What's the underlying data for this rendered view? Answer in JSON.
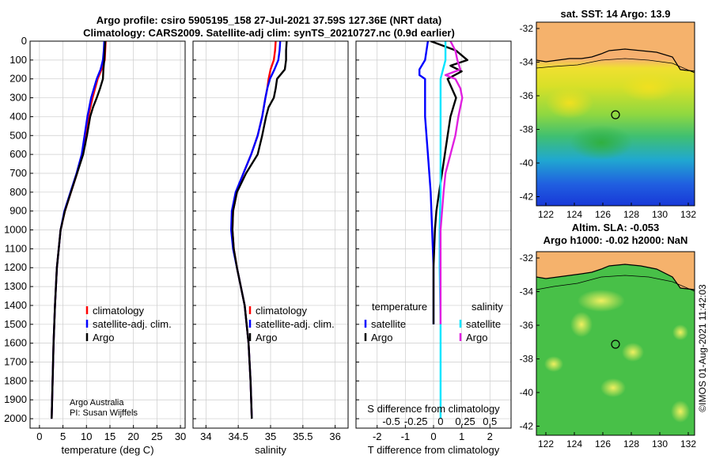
{
  "title": {
    "line1": "Argo profile: csiro 5905195_158 27-Jul-2021 37.59S 127.36E (NRT data)",
    "line2": "Climatology: CARS2009. Satellite-adj clim: synTS_20210727.nc (0.9d earlier)"
  },
  "colors": {
    "climatology": "#ff0000",
    "satellite": "#0000ff",
    "argo": "#000000",
    "sal_diff_satellite": "#00e5ff",
    "sal_diff_argo": "#e020e0",
    "grid": "#cccccc"
  },
  "chart_data": [
    {
      "type": "line",
      "id": "temperature",
      "xlabel": "temperature (deg C)",
      "ylabel": "",
      "xlim": [
        -2,
        31
      ],
      "xticks": [
        0,
        5,
        10,
        15,
        20,
        25,
        30
      ],
      "ylim": [
        0,
        2050
      ],
      "yticks": [
        0,
        100,
        200,
        300,
        400,
        500,
        600,
        700,
        800,
        900,
        1000,
        1100,
        1200,
        1300,
        1400,
        1500,
        1600,
        1700,
        1800,
        1900,
        2000
      ],
      "grid": true,
      "legend": {
        "placement": "center-right",
        "entries": [
          "climatology",
          "satellite-adj. clim.",
          "Argo"
        ]
      },
      "credit": [
        "Argo Australia",
        "PI: Susan Wijffels"
      ],
      "series": [
        {
          "name": "climatology",
          "color": "#ff0000",
          "depth": [
            0,
            50,
            100,
            150,
            200,
            300,
            400,
            500,
            600,
            700,
            800,
            900,
            1000,
            1200,
            1400,
            1600,
            1800,
            2000
          ],
          "values": [
            14.1,
            14.0,
            13.9,
            13.2,
            12.4,
            11.3,
            10.4,
            9.8,
            9.1,
            8.0,
            6.7,
            5.4,
            4.5,
            3.7,
            3.3,
            3.0,
            2.8,
            2.6
          ]
        },
        {
          "name": "satellite-adj. clim.",
          "color": "#0000ff",
          "depth": [
            0,
            50,
            100,
            150,
            200,
            300,
            400,
            500,
            600,
            700,
            800,
            900,
            1000,
            1200,
            1400,
            1600,
            1800,
            2000
          ],
          "values": [
            13.8,
            13.7,
            13.5,
            13.0,
            12.2,
            11.0,
            10.2,
            9.6,
            9.0,
            7.9,
            6.6,
            5.3,
            4.5,
            3.7,
            3.3,
            3.0,
            2.8,
            2.6
          ]
        },
        {
          "name": "Argo",
          "color": "#000000",
          "depth": [
            0,
            50,
            100,
            150,
            200,
            250,
            300,
            350,
            400,
            500,
            600,
            700,
            800,
            900,
            1000,
            1200,
            1400,
            1600,
            1800,
            2000
          ],
          "values": [
            14.0,
            13.9,
            13.8,
            13.6,
            13.5,
            12.9,
            12.2,
            11.4,
            10.8,
            10.1,
            9.3,
            8.0,
            6.7,
            5.4,
            4.5,
            3.7,
            3.3,
            3.0,
            2.8,
            2.6
          ]
        }
      ]
    },
    {
      "type": "line",
      "id": "salinity",
      "xlabel": "salinity",
      "xlim": [
        33.8,
        36.2
      ],
      "xticks": [
        34,
        34.5,
        35,
        35.5,
        36
      ],
      "ylim": [
        0,
        2050
      ],
      "grid": true,
      "legend": {
        "placement": "center-right",
        "entries": [
          "climatology",
          "satellite-adj. clim.",
          "Argo"
        ]
      },
      "series": [
        {
          "name": "climatology",
          "color": "#ff0000",
          "depth": [
            0,
            50,
            100,
            150,
            200,
            250,
            300,
            400,
            500,
            600,
            700,
            800,
            900,
            1000,
            1100,
            1200,
            1400,
            1600,
            1800,
            2000
          ],
          "values": [
            35.08,
            35.07,
            35.05,
            35.0,
            34.97,
            34.95,
            34.92,
            34.87,
            34.8,
            34.7,
            34.58,
            34.48,
            34.42,
            34.41,
            34.43,
            34.48,
            34.6,
            34.66,
            34.69,
            34.71
          ]
        },
        {
          "name": "satellite-adj. clim.",
          "color": "#0000ff",
          "depth": [
            0,
            50,
            100,
            150,
            200,
            250,
            300,
            400,
            500,
            600,
            700,
            800,
            900,
            1000,
            1100,
            1200,
            1400,
            1600,
            1800,
            2000
          ],
          "values": [
            35.15,
            35.14,
            35.12,
            35.06,
            34.99,
            34.95,
            34.92,
            34.87,
            34.8,
            34.7,
            34.58,
            34.46,
            34.4,
            34.39,
            34.42,
            34.48,
            34.6,
            34.66,
            34.69,
            34.71
          ]
        },
        {
          "name": "Argo",
          "color": "#000000",
          "depth": [
            0,
            50,
            100,
            150,
            200,
            250,
            300,
            350,
            400,
            500,
            600,
            700,
            800,
            900,
            1000,
            1100,
            1200,
            1400,
            1600,
            1800,
            2000
          ],
          "values": [
            35.25,
            35.24,
            35.24,
            35.22,
            35.1,
            35.08,
            35.05,
            34.97,
            34.93,
            34.87,
            34.8,
            34.62,
            34.48,
            34.42,
            34.41,
            34.43,
            34.48,
            34.6,
            34.66,
            34.69,
            34.71
          ]
        }
      ]
    },
    {
      "type": "line",
      "id": "differences",
      "xlabel": "T difference from climatology",
      "xlabel_top": "S difference from climatology",
      "xlim": [
        -2.75,
        2.75
      ],
      "xticks": [
        -2,
        -1,
        0,
        1,
        2
      ],
      "top_ticks": [
        -0.5,
        -0.25,
        0,
        0.25,
        0.5
      ],
      "top_tick_labels": [
        "-0.5",
        "-0.25",
        "0",
        "0.25",
        "0.5"
      ],
      "ylim": [
        0,
        2050
      ],
      "grid": true,
      "legend": {
        "placement": "center",
        "left_title": "temperature",
        "right_title": "salinity",
        "entries": [
          "satellite",
          "Argo",
          "satellite",
          "Argo"
        ]
      },
      "series": [
        {
          "name": "T satellite",
          "color": "#0000ff",
          "depth": [
            0,
            100,
            150,
            180,
            200,
            300,
            400,
            600,
            800,
            1000,
            1200,
            1500
          ],
          "values": [
            -0.2,
            -0.3,
            -0.5,
            -0.5,
            -0.3,
            -0.3,
            -0.3,
            -0.2,
            -0.1,
            -0.05,
            0.0,
            0.0
          ]
        },
        {
          "name": "T Argo",
          "color": "#000000",
          "depth": [
            0,
            50,
            100,
            130,
            160,
            200,
            300,
            400,
            500,
            600,
            700,
            800,
            900,
            1000,
            1200,
            1500
          ],
          "values": [
            -0.1,
            0.8,
            1.2,
            0.6,
            1.0,
            0.5,
            0.8,
            0.6,
            0.5,
            0.4,
            0.3,
            0.2,
            0.1,
            0.05,
            0.0,
            0.0
          ]
        },
        {
          "name": "S satellite",
          "color": "#00e5ff",
          "depth": [
            0,
            100,
            200,
            300,
            400,
            500,
            600,
            800,
            1000,
            1200,
            1500,
            2000
          ],
          "values": [
            0.05,
            0.05,
            0.0,
            0.0,
            0.0,
            0.0,
            0.0,
            0.0,
            -0.01,
            -0.01,
            0.0,
            0.0
          ]
        },
        {
          "name": "S Argo",
          "color": "#e020e0",
          "depth": [
            0,
            50,
            100,
            150,
            180,
            200,
            250,
            300,
            400,
            500,
            600,
            700,
            800,
            1000,
            1200,
            1500
          ],
          "values": [
            0.1,
            0.15,
            0.17,
            0.2,
            0.05,
            0.15,
            0.2,
            0.22,
            0.18,
            0.15,
            0.1,
            0.05,
            0.03,
            0.0,
            0.0,
            0.0
          ]
        }
      ]
    }
  ],
  "maps": [
    {
      "id": "sst",
      "title": "sat. SST: 14 Argo: 13.9",
      "lat_ticks": [
        "-32",
        "-34",
        "-36",
        "-38",
        "-40",
        "-42"
      ],
      "lon_ticks": [
        "122",
        "124",
        "126",
        "128",
        "130",
        "132"
      ],
      "profile_marker": {
        "lon": 127.36,
        "lat": -37.59
      }
    },
    {
      "id": "sla",
      "title_line1": "Altim. SLA: -0.053",
      "title_line2": "Argo h1000: -0.02 h2000: NaN",
      "lat_ticks": [
        "-32",
        "-34",
        "-36",
        "-38",
        "-40",
        "-42"
      ],
      "lon_ticks": [
        "122",
        "124",
        "126",
        "128",
        "130",
        "132"
      ],
      "profile_marker": {
        "lon": 127.36,
        "lat": -37.59
      }
    }
  ],
  "watermark": "©IMOS 01-Aug-2021 11:42:03"
}
